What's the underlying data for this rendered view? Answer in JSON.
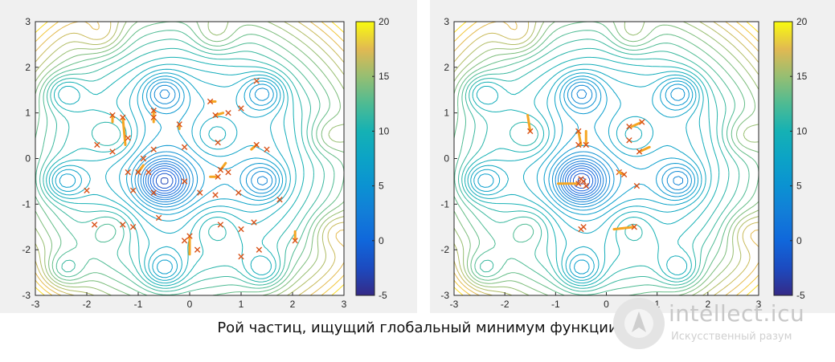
{
  "caption": "Рой частиц, ищущий глобальный минимум функции",
  "watermark": {
    "title": "intellect.icu",
    "subtitle": "Искусственный разум"
  },
  "colors": {
    "marker": "#d95319",
    "trail": "#f5a623",
    "panel_bg": "#f0f0f0"
  },
  "chart_data": [
    {
      "type": "contour",
      "xlim": [
        -3,
        3
      ],
      "ylim": [
        -3,
        3
      ],
      "x_ticks": [
        "-3",
        "-2",
        "-1",
        "0",
        "1",
        "2",
        "3"
      ],
      "y_ticks": [
        "-3",
        "-2",
        "-1",
        "0",
        "1",
        "2",
        "3"
      ],
      "colorbar": {
        "range": [
          -5,
          20
        ],
        "ticks": [
          "20",
          "15",
          "10",
          "5",
          "0",
          "-5"
        ],
        "colormap": "parula"
      },
      "global_minimum": [
        -0.5,
        -0.5
      ],
      "particles": [
        {
          "x": -1.5,
          "y": 0.95,
          "dx": 0.0,
          "dy": -0.15
        },
        {
          "x": -1.3,
          "y": 0.9,
          "dx": 0.05,
          "dy": -0.6
        },
        {
          "x": -1.8,
          "y": 0.3,
          "dx": 0,
          "dy": 0
        },
        {
          "x": -1.5,
          "y": 0.15,
          "dx": 0,
          "dy": 0
        },
        {
          "x": -1.2,
          "y": 0.45,
          "dx": 0,
          "dy": 0
        },
        {
          "x": -0.7,
          "y": 1.05,
          "dx": 0,
          "dy": -0.25
        },
        {
          "x": -0.7,
          "y": 0.9,
          "dx": 0,
          "dy": 0
        },
        {
          "x": -0.2,
          "y": 0.75,
          "dx": 0,
          "dy": -0.1
        },
        {
          "x": 0.4,
          "y": 1.25,
          "dx": 0.1,
          "dy": 0
        },
        {
          "x": 0.5,
          "y": 0.95,
          "dx": 0.15,
          "dy": 0.05
        },
        {
          "x": 0.75,
          "y": 1.0,
          "dx": 0,
          "dy": 0
        },
        {
          "x": 1.0,
          "y": 1.1,
          "dx": 0,
          "dy": 0
        },
        {
          "x": 1.3,
          "y": 1.7,
          "dx": 0,
          "dy": 0
        },
        {
          "x": 0.55,
          "y": 0.35,
          "dx": 0,
          "dy": 0
        },
        {
          "x": 1.3,
          "y": 0.3,
          "dx": -0.1,
          "dy": -0.1
        },
        {
          "x": 1.5,
          "y": 0.2,
          "dx": 0,
          "dy": 0
        },
        {
          "x": -0.1,
          "y": 0.25,
          "dx": 0,
          "dy": 0
        },
        {
          "x": -0.7,
          "y": 0.2,
          "dx": 0,
          "dy": 0
        },
        {
          "x": -0.9,
          "y": 0.0,
          "dx": 0,
          "dy": 0
        },
        {
          "x": -1.2,
          "y": -0.3,
          "dx": 0,
          "dy": 0
        },
        {
          "x": -1.0,
          "y": -0.3,
          "dx": 0.1,
          "dy": 0.15
        },
        {
          "x": -0.8,
          "y": -0.3,
          "dx": 0,
          "dy": 0
        },
        {
          "x": -0.1,
          "y": -0.5,
          "dx": 0,
          "dy": 0
        },
        {
          "x": 0.6,
          "y": -0.25,
          "dx": 0.1,
          "dy": 0.15
        },
        {
          "x": 0.55,
          "y": -0.4,
          "dx": -0.15,
          "dy": 0
        },
        {
          "x": 0.75,
          "y": -0.3,
          "dx": 0,
          "dy": 0
        },
        {
          "x": -1.1,
          "y": -0.7,
          "dx": 0,
          "dy": 0
        },
        {
          "x": -0.7,
          "y": -0.75,
          "dx": 0,
          "dy": 0
        },
        {
          "x": 0.2,
          "y": -0.75,
          "dx": 0,
          "dy": 0
        },
        {
          "x": 0.5,
          "y": -0.8,
          "dx": 0,
          "dy": 0
        },
        {
          "x": 0.95,
          "y": -0.75,
          "dx": 0,
          "dy": 0
        },
        {
          "x": 1.75,
          "y": -0.9,
          "dx": 0,
          "dy": 0
        },
        {
          "x": -2.0,
          "y": -0.7,
          "dx": 0,
          "dy": 0
        },
        {
          "x": -0.6,
          "y": -1.3,
          "dx": 0,
          "dy": 0
        },
        {
          "x": 0.6,
          "y": -1.45,
          "dx": 0,
          "dy": 0
        },
        {
          "x": 1.0,
          "y": -1.55,
          "dx": 0,
          "dy": 0
        },
        {
          "x": 1.25,
          "y": -1.4,
          "dx": 0,
          "dy": 0
        },
        {
          "x": -1.85,
          "y": -1.45,
          "dx": 0,
          "dy": 0
        },
        {
          "x": -1.3,
          "y": -1.45,
          "dx": 0,
          "dy": 0
        },
        {
          "x": -1.1,
          "y": -1.5,
          "dx": 0,
          "dy": 0
        },
        {
          "x": 0.0,
          "y": -1.7,
          "dx": 0,
          "dy": -0.4
        },
        {
          "x": -0.1,
          "y": -1.8,
          "dx": 0,
          "dy": 0
        },
        {
          "x": 0.15,
          "y": -2.0,
          "dx": 0,
          "dy": 0
        },
        {
          "x": 1.0,
          "y": -2.15,
          "dx": 0,
          "dy": 0
        },
        {
          "x": 1.35,
          "y": -2.0,
          "dx": 0,
          "dy": 0
        },
        {
          "x": 2.05,
          "y": -1.8,
          "dx": 0,
          "dy": 0.2
        }
      ]
    },
    {
      "type": "contour",
      "xlim": [
        -3,
        3
      ],
      "ylim": [
        -3,
        3
      ],
      "x_ticks": [
        "-3",
        "-2",
        "-1",
        "0",
        "1",
        "2",
        "3"
      ],
      "y_ticks": [
        "-3",
        "-2",
        "-1",
        "0",
        "1",
        "2",
        "3"
      ],
      "colorbar": {
        "range": [
          -5,
          20
        ],
        "ticks": [
          "20",
          "15",
          "10",
          "5",
          "0",
          "-5"
        ],
        "colormap": "parula"
      },
      "global_minimum": [
        -0.5,
        -0.5
      ],
      "particles": [
        {
          "x": -1.5,
          "y": 0.6,
          "dx": -0.05,
          "dy": 0.35
        },
        {
          "x": -0.4,
          "y": 0.3,
          "dx": 0,
          "dy": 0.3
        },
        {
          "x": -0.55,
          "y": 0.6,
          "dx": 0.05,
          "dy": -0.3
        },
        {
          "x": -0.55,
          "y": 0.3,
          "dx": 0,
          "dy": 0
        },
        {
          "x": 0.45,
          "y": 0.7,
          "dx": 0,
          "dy": 0
        },
        {
          "x": 0.7,
          "y": 0.8,
          "dx": -0.2,
          "dy": -0.1
        },
        {
          "x": 0.45,
          "y": 0.4,
          "dx": 0,
          "dy": 0
        },
        {
          "x": 0.65,
          "y": 0.15,
          "dx": 0.2,
          "dy": 0.1
        },
        {
          "x": 0.25,
          "y": -0.3,
          "dx": 0,
          "dy": 0
        },
        {
          "x": 0.35,
          "y": -0.35,
          "dx": -0.1,
          "dy": 0.05
        },
        {
          "x": 0.6,
          "y": -0.6,
          "dx": 0,
          "dy": 0
        },
        {
          "x": -0.5,
          "y": -0.45,
          "dx": 0,
          "dy": 0
        },
        {
          "x": -0.45,
          "y": -0.5,
          "dx": 0,
          "dy": 0
        },
        {
          "x": -0.55,
          "y": -0.55,
          "dx": -0.4,
          "dy": 0
        },
        {
          "x": -0.4,
          "y": -0.6,
          "dx": 0,
          "dy": 0
        },
        {
          "x": -0.5,
          "y": -1.55,
          "dx": 0,
          "dy": 0
        },
        {
          "x": -0.45,
          "y": -1.5,
          "dx": 0,
          "dy": 0
        },
        {
          "x": 0.55,
          "y": -1.5,
          "dx": -0.4,
          "dy": -0.05
        }
      ]
    }
  ]
}
